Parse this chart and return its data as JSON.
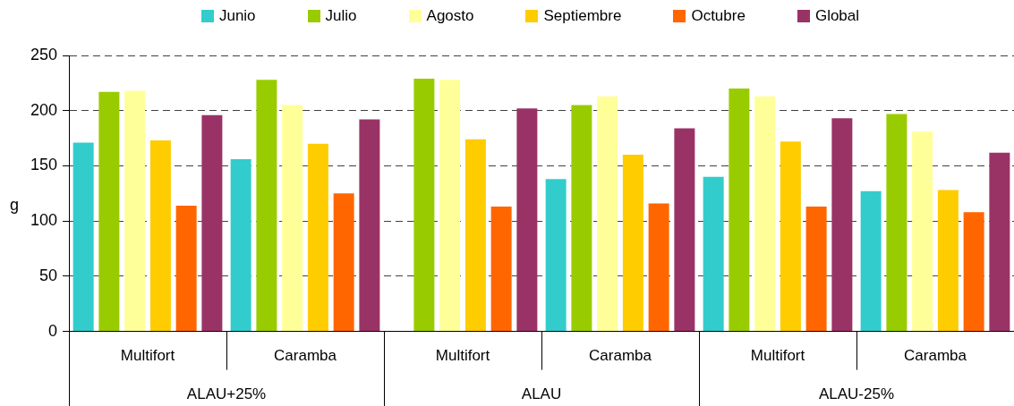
{
  "chart_data": {
    "type": "bar",
    "ylabel": "g",
    "categories": [
      "Multifort",
      "Caramba",
      "Multifort",
      "Caramba",
      "Multifort",
      "Caramba"
    ],
    "annotations": [
      "ALAU+25%",
      "ALAU",
      "ALAU-25%"
    ],
    "series": [
      {
        "name": "Junio",
        "color": "#33cccc",
        "values": [
          171,
          156,
          null,
          138,
          140,
          127
        ]
      },
      {
        "name": "Julio",
        "color": "#99cc00",
        "values": [
          217,
          228,
          229,
          205,
          220,
          197
        ]
      },
      {
        "name": "Agosto",
        "color": "#ffff99",
        "values": [
          218,
          205,
          228,
          213,
          213,
          181
        ]
      },
      {
        "name": "Septiembre",
        "color": "#ffcc00",
        "values": [
          173,
          170,
          174,
          160,
          172,
          128
        ]
      },
      {
        "name": "Octubre",
        "color": "#ff6600",
        "values": [
          114,
          125,
          113,
          116,
          113,
          108
        ]
      },
      {
        "name": "Global",
        "color": "#993366",
        "values": [
          196,
          192,
          202,
          184,
          193,
          162
        ]
      }
    ],
    "ylim": [
      0,
      250
    ],
    "yticks": [
      0,
      50,
      100,
      150,
      200,
      250
    ],
    "grid": "y",
    "legend": "top"
  }
}
